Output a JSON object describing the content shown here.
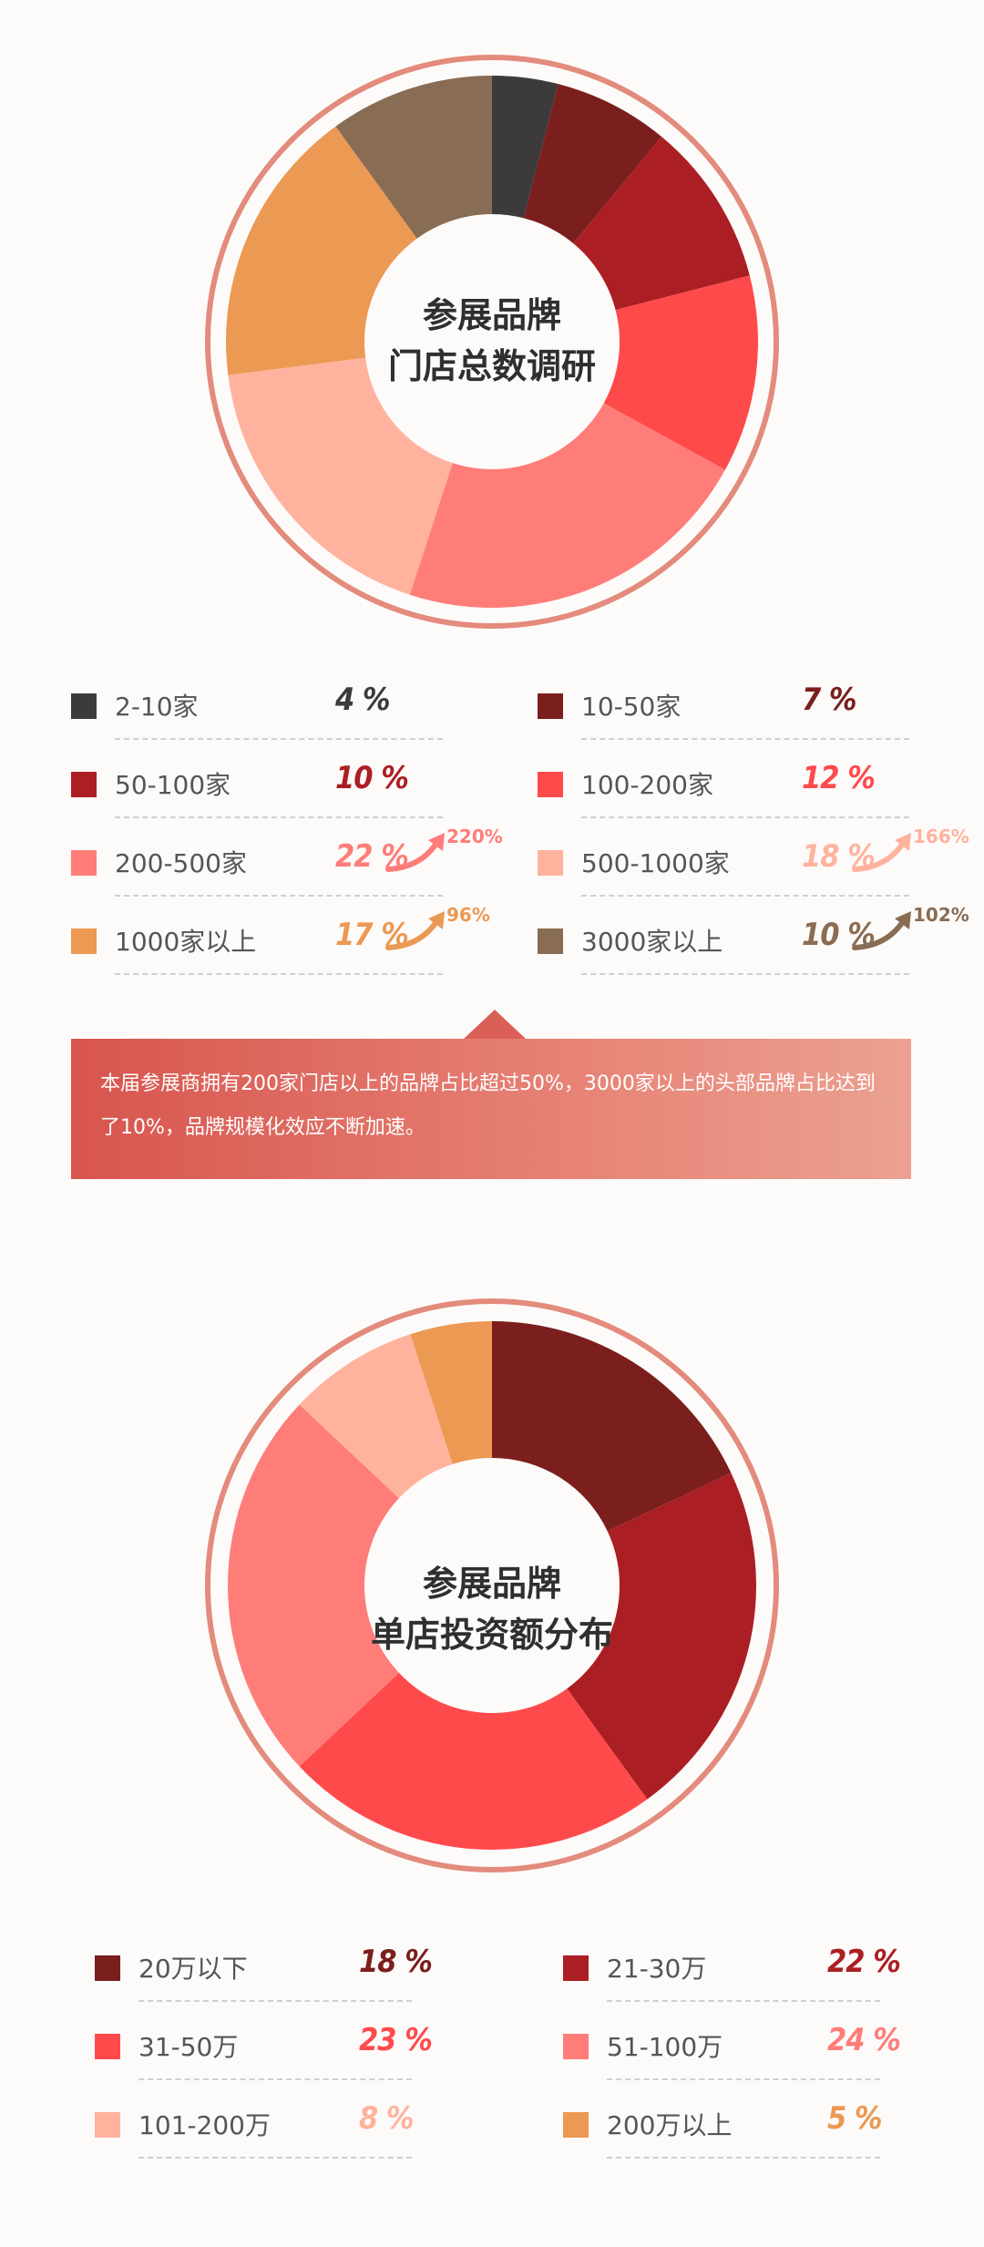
{
  "charts": [
    {
      "center_lines": [
        "参展品牌",
        "门店总数调研"
      ],
      "legend": [
        {
          "label": "2-10家",
          "value": 4,
          "pct": "4 %",
          "color": "#3c3a3b"
        },
        {
          "label": "10-50家",
          "value": 7,
          "pct": "7 %",
          "color": "#7a1f1d"
        },
        {
          "label": "50-100家",
          "value": 10,
          "pct": "10 %",
          "color": "#ab1f24"
        },
        {
          "label": "100-200家",
          "value": 12,
          "pct": "12 %",
          "color": "#ff4a4c"
        },
        {
          "label": "200-500家",
          "value": 22,
          "pct": "22 %",
          "color": "#ff7d78",
          "growth": "220%"
        },
        {
          "label": "500-1000家",
          "value": 18,
          "pct": "18 %",
          "color": "#ffb39e",
          "growth": "166%"
        },
        {
          "label": "1000家以上",
          "value": 17,
          "pct": "17 %",
          "color": "#eb9953",
          "growth": "96%"
        },
        {
          "label": "3000家以上",
          "value": 10,
          "pct": "10 %",
          "color": "#896c54",
          "growth": "102%"
        }
      ]
    },
    {
      "center_lines": [
        "参展品牌",
        "单店投资额分布"
      ],
      "legend": [
        {
          "label": "20万以下",
          "value": 18,
          "pct": "18 %",
          "color": "#7a1f1d"
        },
        {
          "label": "21-30万",
          "value": 22,
          "pct": "22 %",
          "color": "#ab1f24"
        },
        {
          "label": "31-50万",
          "value": 23,
          "pct": "23 %",
          "color": "#ff4a4c"
        },
        {
          "label": "51-100万",
          "value": 24,
          "pct": "24 %",
          "color": "#ff7d78"
        },
        {
          "label": "101-200万",
          "value": 8,
          "pct": "8 %",
          "color": "#ffb39e"
        },
        {
          "label": "200万以上",
          "value": 5,
          "pct": "5 %",
          "color": "#eb9953"
        }
      ]
    }
  ],
  "note": "本届参展商拥有200家门店以上的品牌占比超过50%，3000家以上的头部品牌占比达到了10%，品牌规模化效应不断加速。",
  "chart_data": [
    {
      "type": "pie",
      "title": "参展品牌 门店总数调研",
      "categories": [
        "2-10家",
        "10-50家",
        "50-100家",
        "100-200家",
        "200-500家",
        "500-1000家",
        "1000家以上",
        "3000家以上"
      ],
      "values": [
        4,
        7,
        10,
        12,
        22,
        18,
        17,
        10
      ],
      "unit": "%",
      "growth": {
        "200-500家": "220%",
        "500-1000家": "166%",
        "1000家以上": "96%",
        "3000家以上": "102%"
      }
    },
    {
      "type": "pie",
      "title": "参展品牌 单店投资额分布",
      "categories": [
        "20万以下",
        "21-30万",
        "31-50万",
        "51-100万",
        "101-200万",
        "200万以上"
      ],
      "values": [
        18,
        22,
        23,
        24,
        8,
        5
      ],
      "unit": "%"
    }
  ]
}
